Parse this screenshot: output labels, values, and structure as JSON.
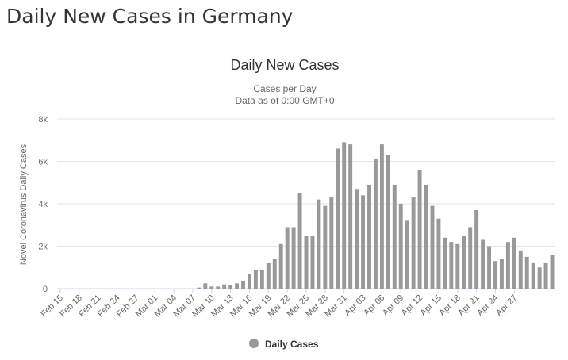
{
  "page": {
    "title": "Daily New Cases in Germany"
  },
  "chart_data": {
    "type": "bar",
    "title": "Daily New Cases",
    "subtitle_lines": [
      "Cases per Day",
      "Data as of 0:00 GMT+0"
    ],
    "xlabel": "",
    "ylabel": "Novel Coronavirus Daily Cases",
    "ylim": [
      0,
      8000
    ],
    "yticks": [
      {
        "value": 0,
        "label": "0"
      },
      {
        "value": 2000,
        "label": "2k"
      },
      {
        "value": 4000,
        "label": "4k"
      },
      {
        "value": 6000,
        "label": "6k"
      },
      {
        "value": 8000,
        "label": "8k"
      }
    ],
    "xtick_labels": [
      "Feb 15",
      "Feb 18",
      "Feb 21",
      "Feb 24",
      "Feb 27",
      "Mar 01",
      "Mar 04",
      "Mar 07",
      "Mar 10",
      "Mar 13",
      "Mar 16",
      "Mar 19",
      "Mar 22",
      "Mar 25",
      "Mar 28",
      "Mar 31",
      "Apr 03",
      "Apr 06",
      "Apr 09",
      "Apr 12",
      "Apr 15",
      "Apr 18",
      "Apr 21",
      "Apr 24",
      "Apr 27"
    ],
    "xtick_step": 3,
    "grid": true,
    "legend": "bottom-center",
    "series": [
      {
        "name": "Daily Cases",
        "color": "#999999",
        "values": [
          0,
          0,
          0,
          0,
          0,
          0,
          0,
          0,
          0,
          0,
          0,
          0,
          0,
          0,
          0,
          0,
          0,
          0,
          0,
          0,
          0,
          0,
          50,
          250,
          100,
          100,
          200,
          150,
          250,
          350,
          700,
          900,
          900,
          1200,
          1400,
          2100,
          2900,
          2900,
          4500,
          2500,
          2500,
          4200,
          3900,
          4300,
          6600,
          6900,
          6800,
          4700,
          4400,
          4900,
          6100,
          6800,
          6300,
          4900,
          4000,
          3200,
          4300,
          5600,
          4900,
          3900,
          3300,
          2400,
          2200,
          2100,
          2500,
          2900,
          3700,
          2300,
          2000,
          1300,
          1400,
          2200,
          2400,
          1800,
          1500,
          1200,
          1000,
          1200,
          1600
        ]
      }
    ]
  }
}
